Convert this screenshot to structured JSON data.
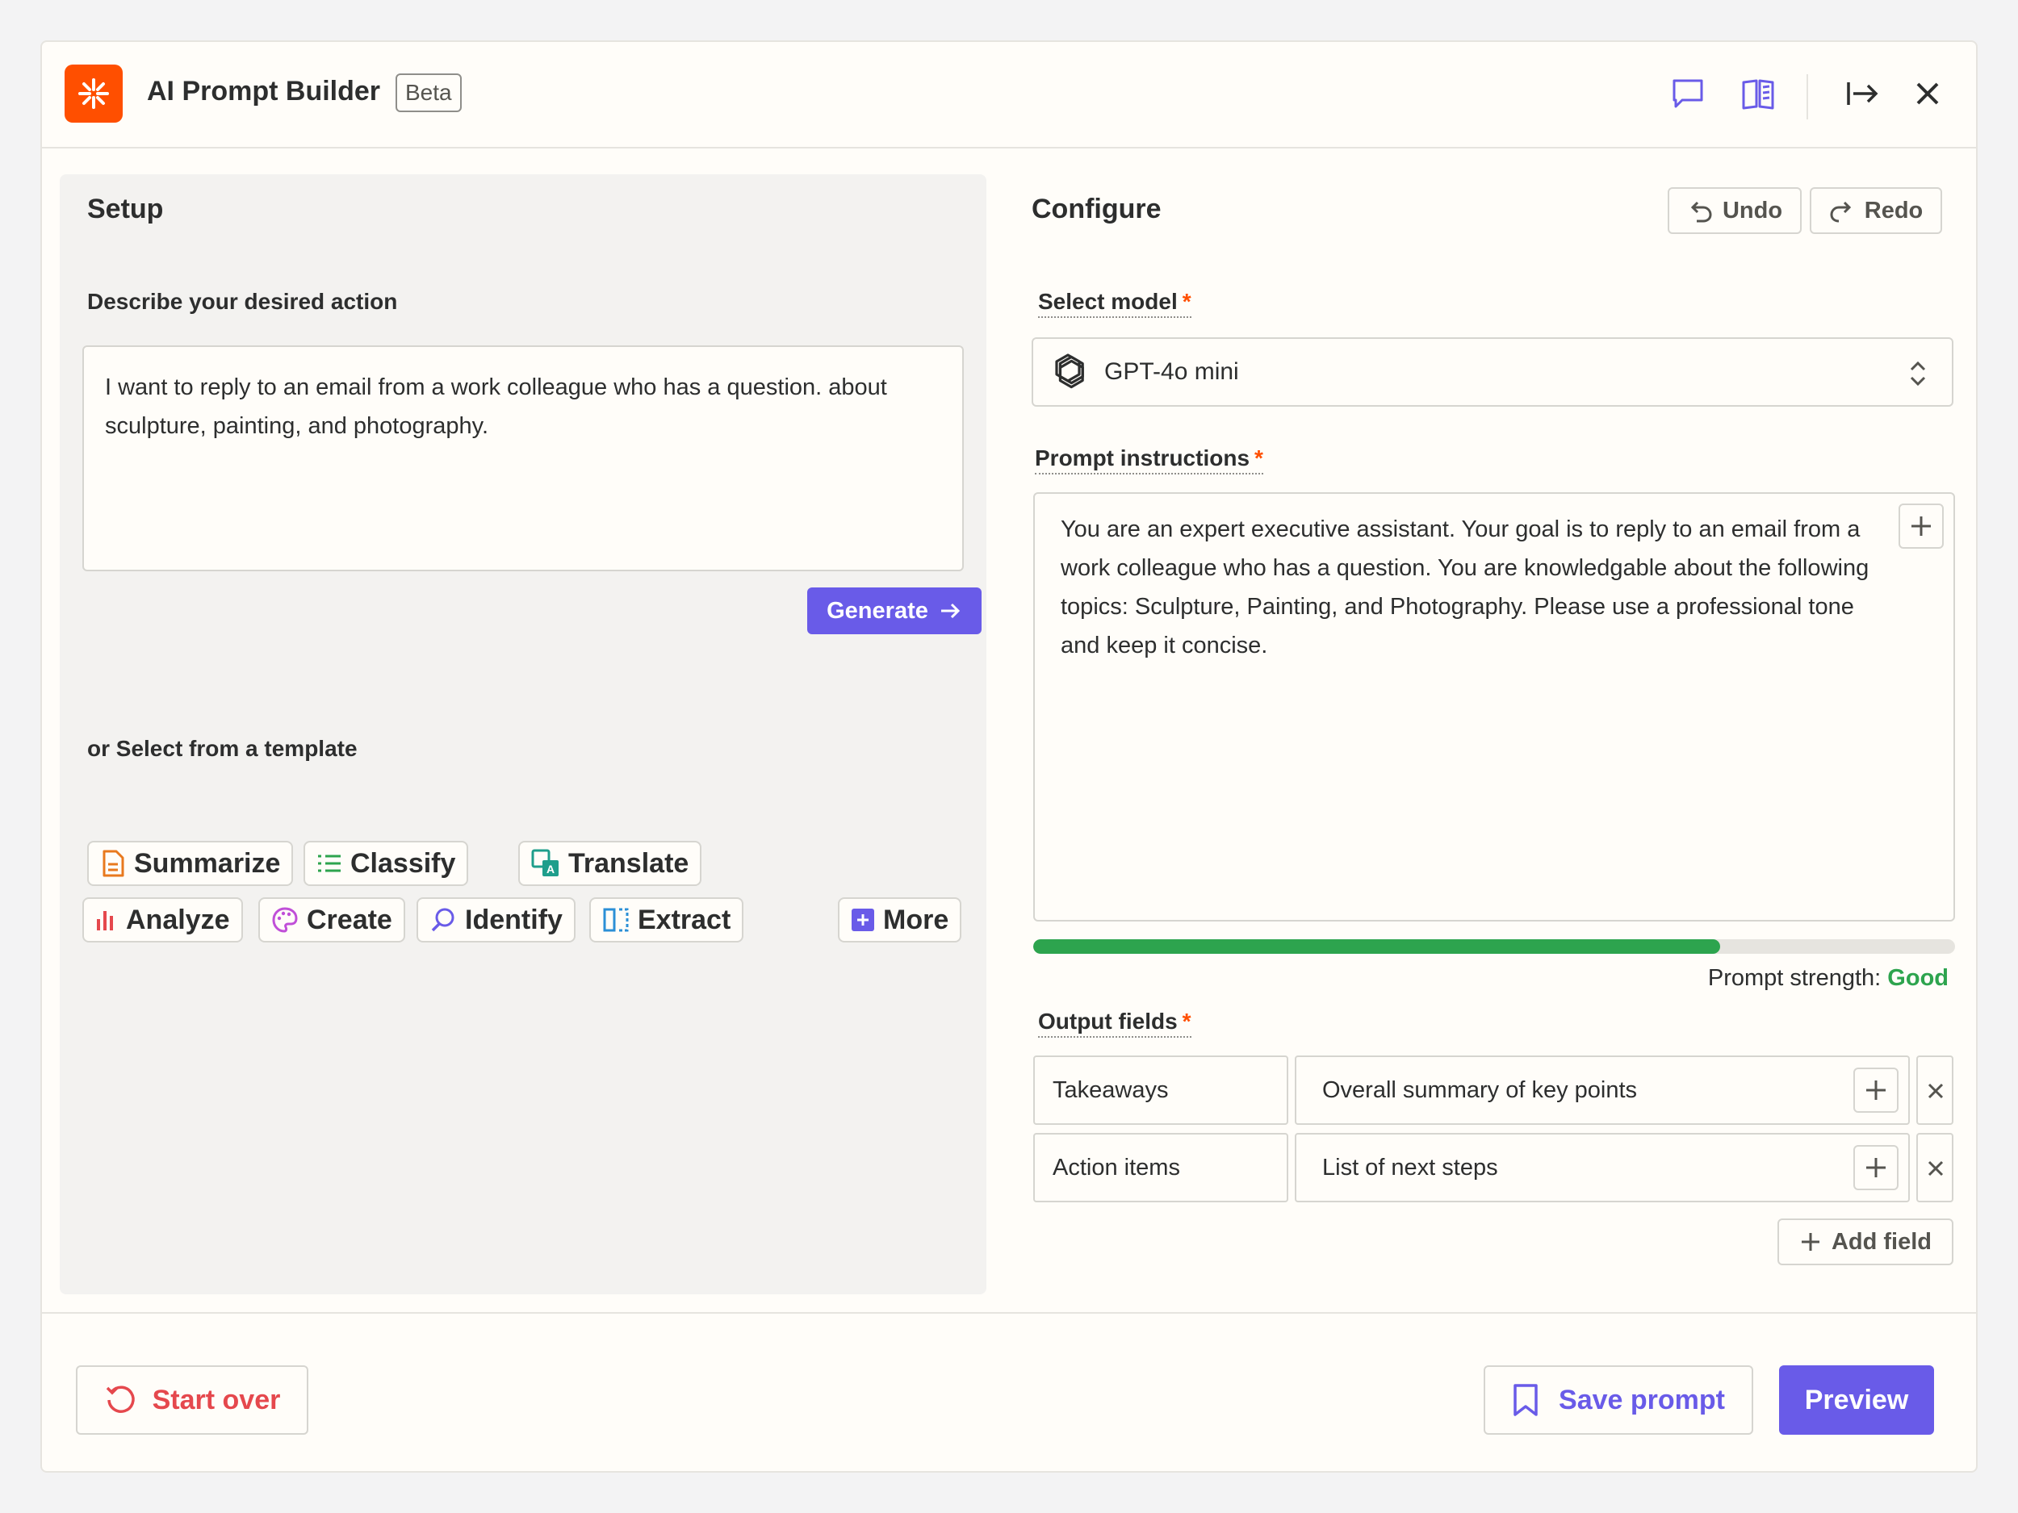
{
  "header": {
    "title": "AI Prompt Builder",
    "badge": "Beta",
    "icons": [
      "feedback-icon",
      "docs-book-icon",
      "collapse-panel-icon",
      "close-icon"
    ]
  },
  "setup": {
    "title": "Setup",
    "describe_label": "Describe your desired action",
    "description": "I want to reply to an email from a work colleague who has a question. about sculpture, painting, and photography.",
    "generate_label": "Generate",
    "template_label": "or Select from a template",
    "templates": [
      {
        "label": "Summarize",
        "icon": "document-icon",
        "color": "#e8791e"
      },
      {
        "label": "Classify",
        "icon": "list-icon",
        "color": "#2da44e"
      },
      {
        "label": "Translate",
        "icon": "translate-icon",
        "color": "#1e9e8c"
      },
      {
        "label": "Analyze",
        "icon": "bar-chart-icon",
        "color": "#e5484d"
      },
      {
        "label": "Create",
        "icon": "palette-icon",
        "color": "#c04fd8"
      },
      {
        "label": "Identify",
        "icon": "magnifier-icon",
        "color": "#695be8"
      },
      {
        "label": "Extract",
        "icon": "extract-icon",
        "color": "#2b8fd6"
      }
    ],
    "more_label": "More"
  },
  "configure": {
    "title": "Configure",
    "undo_label": "Undo",
    "redo_label": "Redo",
    "model_label": "Select model",
    "model_value": "GPT-4o mini",
    "required_mark": "*",
    "prompt_label": "Prompt instructions",
    "prompt_text": "You are an expert executive assistant. Your goal is to reply to an email from a work colleague who has a question. You are knowledgable about the following topics: Sculpture, Painting, and Photography. Please use a professional tone and keep it concise.",
    "strength_label": "Prompt strength:",
    "strength_value": "Good",
    "strength_fraction": 0.745,
    "output_label": "Output fields",
    "fields": [
      {
        "name": "Takeaways",
        "description": "Overall summary of key points"
      },
      {
        "name": "Action items",
        "description": "List of next steps"
      }
    ],
    "add_field_label": "Add field"
  },
  "footer": {
    "start_over_label": "Start over",
    "save_label": "Save prompt",
    "preview_label": "Preview"
  },
  "colors": {
    "brand": "#ff4f00",
    "accent": "#695be8",
    "good": "#2da44e",
    "danger": "#e5484d"
  }
}
